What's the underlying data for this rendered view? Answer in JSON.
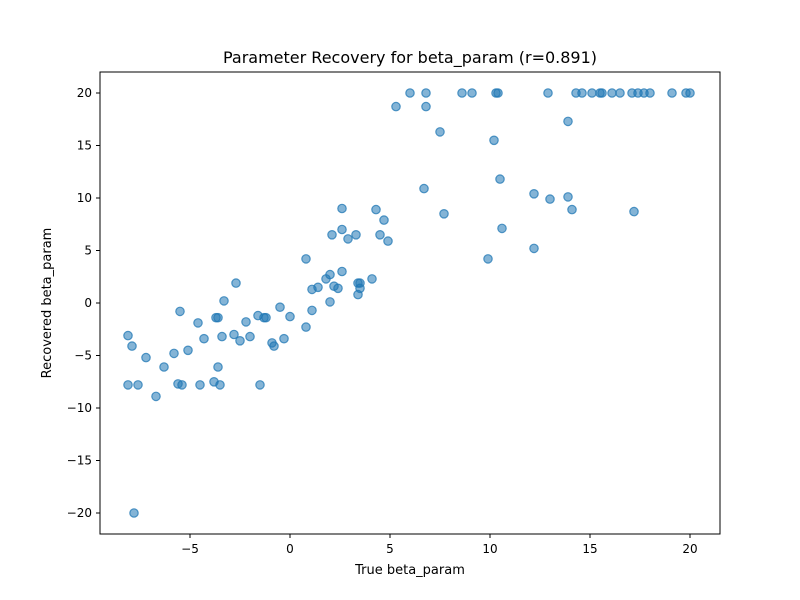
{
  "chart_data": {
    "type": "scatter",
    "title": "Parameter Recovery for beta_param (r=0.891)",
    "xlabel": "True beta_param",
    "ylabel": "Recovered beta_param",
    "xlim": [
      -9.5,
      21.5
    ],
    "ylim": [
      -22,
      22
    ],
    "xticks": [
      -5,
      0,
      5,
      10,
      15,
      20
    ],
    "yticks": [
      -20,
      -15,
      -10,
      -5,
      0,
      5,
      10,
      15,
      20
    ],
    "xtick_labels": [
      "−5",
      "0",
      "5",
      "10",
      "15",
      "20"
    ],
    "ytick_labels": [
      "−20",
      "−15",
      "−10",
      "−5",
      "0",
      "5",
      "10",
      "15",
      "20"
    ],
    "grid": false,
    "marker_color": "#1f77b4",
    "marker_alpha": 0.55,
    "points": [
      [
        -7.8,
        -20.0
      ],
      [
        -8.1,
        -3.1
      ],
      [
        -7.9,
        -4.1
      ],
      [
        -7.2,
        -5.2
      ],
      [
        -8.1,
        -7.8
      ],
      [
        -7.6,
        -7.8
      ],
      [
        -6.7,
        -8.9
      ],
      [
        -6.3,
        -6.1
      ],
      [
        -5.8,
        -4.8
      ],
      [
        -5.5,
        -0.8
      ],
      [
        -5.1,
        -4.5
      ],
      [
        -5.6,
        -7.7
      ],
      [
        -5.4,
        -7.8
      ],
      [
        -4.6,
        -1.9
      ],
      [
        -4.3,
        -3.4
      ],
      [
        -4.5,
        -7.8
      ],
      [
        -3.8,
        -7.5
      ],
      [
        -3.6,
        -6.1
      ],
      [
        -3.7,
        -1.4
      ],
      [
        -3.6,
        -1.4
      ],
      [
        -3.4,
        -3.2
      ],
      [
        -3.3,
        0.2
      ],
      [
        -3.5,
        -7.8
      ],
      [
        -2.8,
        -3.0
      ],
      [
        -2.7,
        1.9
      ],
      [
        -2.5,
        -3.6
      ],
      [
        -2.2,
        -1.8
      ],
      [
        -2.0,
        -3.2
      ],
      [
        -1.6,
        -1.2
      ],
      [
        -1.3,
        -1.4
      ],
      [
        -1.2,
        -1.4
      ],
      [
        -1.5,
        -7.8
      ],
      [
        -0.9,
        -3.8
      ],
      [
        -0.8,
        -4.1
      ],
      [
        -0.5,
        -0.4
      ],
      [
        -0.3,
        -3.4
      ],
      [
        0.0,
        -1.3
      ],
      [
        0.8,
        4.2
      ],
      [
        0.8,
        -2.3
      ],
      [
        1.1,
        -0.7
      ],
      [
        1.1,
        1.3
      ],
      [
        1.4,
        1.5
      ],
      [
        1.8,
        2.3
      ],
      [
        2.0,
        2.7
      ],
      [
        2.0,
        0.1
      ],
      [
        2.1,
        6.5
      ],
      [
        2.2,
        1.6
      ],
      [
        2.4,
        1.4
      ],
      [
        2.6,
        3.0
      ],
      [
        2.6,
        7.0
      ],
      [
        2.6,
        9.0
      ],
      [
        2.9,
        6.1
      ],
      [
        3.3,
        6.5
      ],
      [
        3.4,
        1.9
      ],
      [
        3.5,
        1.9
      ],
      [
        3.5,
        1.4
      ],
      [
        3.4,
        0.8
      ],
      [
        4.1,
        2.3
      ],
      [
        4.3,
        8.9
      ],
      [
        4.5,
        6.5
      ],
      [
        4.7,
        7.9
      ],
      [
        4.9,
        5.9
      ],
      [
        5.3,
        18.7
      ],
      [
        6.0,
        20.0
      ],
      [
        6.7,
        10.9
      ],
      [
        6.8,
        20.0
      ],
      [
        6.8,
        18.7
      ],
      [
        7.5,
        16.3
      ],
      [
        7.7,
        8.5
      ],
      [
        8.6,
        20.0
      ],
      [
        9.1,
        20.0
      ],
      [
        9.9,
        4.2
      ],
      [
        10.2,
        15.5
      ],
      [
        10.3,
        20.0
      ],
      [
        10.4,
        20.0
      ],
      [
        10.5,
        11.8
      ],
      [
        10.6,
        7.1
      ],
      [
        12.2,
        10.4
      ],
      [
        12.2,
        5.2
      ],
      [
        12.9,
        20.0
      ],
      [
        13.0,
        9.9
      ],
      [
        13.9,
        10.1
      ],
      [
        13.9,
        17.3
      ],
      [
        14.1,
        8.9
      ],
      [
        14.3,
        20.0
      ],
      [
        14.6,
        20.0
      ],
      [
        15.1,
        20.0
      ],
      [
        15.5,
        20.0
      ],
      [
        15.6,
        20.0
      ],
      [
        16.1,
        20.0
      ],
      [
        16.5,
        20.0
      ],
      [
        17.1,
        20.0
      ],
      [
        17.2,
        8.7
      ],
      [
        17.4,
        20.0
      ],
      [
        17.7,
        20.0
      ],
      [
        18.0,
        20.0
      ],
      [
        19.1,
        20.0
      ],
      [
        19.8,
        20.0
      ],
      [
        20.0,
        20.0
      ]
    ]
  }
}
